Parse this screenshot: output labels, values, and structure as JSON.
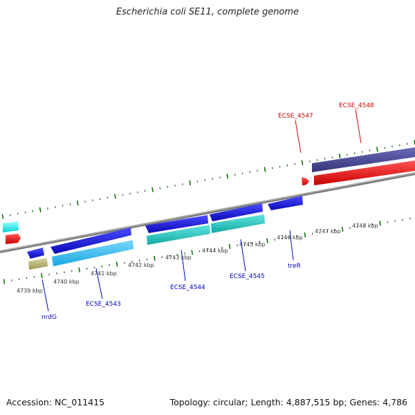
{
  "title": "Escherichia coli SE11, complete genome",
  "footer": {
    "accession": "Accession: NC_011415",
    "stats": "Topology: circular; Length: 4,887,515 bp; Genes: 4,786"
  },
  "colors": {
    "forward_label": "#cc0000",
    "reverse_label": "#0000bb",
    "tick": "#006600",
    "backbone": "#888888"
  },
  "scale_labels": [
    "4739 kbp",
    "4740 kbp",
    "4741 kbp",
    "4742 kbp",
    "4743 kbp",
    "4744 kbp",
    "4745 kbp",
    "4746 kbp",
    "4747 kbp",
    "4748 kbp"
  ],
  "gene_labels": {
    "nrdG": "nrdG",
    "ECSE_4543": "ECSE_4543",
    "ECSE_4544": "ECSE_4544",
    "ECSE_4545": "ECSE_4545",
    "treR": "treR",
    "ECSE_4547": "ECSE_4547",
    "ECSE_4548": "ECSE_4548"
  }
}
